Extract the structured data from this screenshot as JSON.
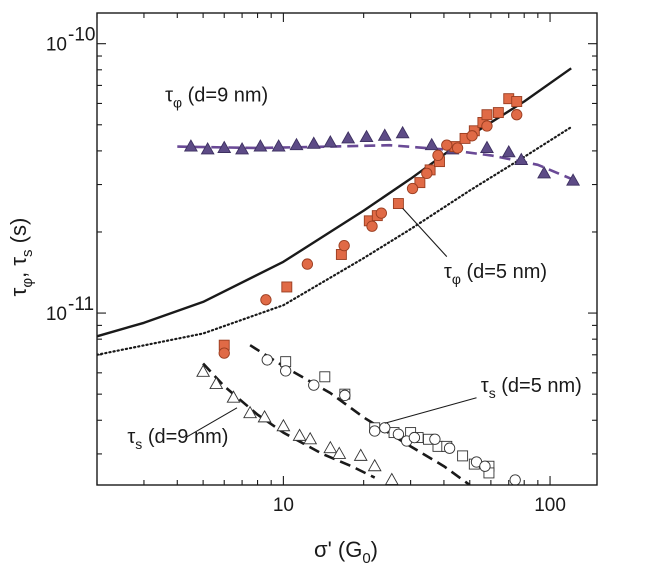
{
  "chart_data": {
    "type": "scatter",
    "title": "",
    "xlabel": {
      "base": "σ' (G",
      "sub": "0",
      "tail": ")"
    },
    "ylabel": {
      "t1": "τ",
      "s1": "φ",
      "sep": ", τ",
      "s2": "s",
      "unit": " (s)"
    },
    "xscale": "log",
    "yscale": "log",
    "xlim": [
      2.0,
      150
    ],
    "ylim": [
      2.3e-12,
      1.3e-10
    ],
    "xticks": [
      {
        "value": 10,
        "label": "10"
      },
      {
        "value": 100,
        "label": "100"
      }
    ],
    "yticks": [
      {
        "value": 1e-11,
        "base": "10",
        "exp": "-11"
      },
      {
        "value": 1e-10,
        "base": "10",
        "exp": "-10"
      }
    ],
    "annotations": [
      {
        "id": "tau-phi-9",
        "sym": "τ",
        "sub": "φ",
        "text": " (d=9 nm)",
        "x": 3.6,
        "y": 6.1e-11
      },
      {
        "id": "tau-phi-5",
        "sym": "τ",
        "sub": "φ",
        "text": " (d=5 nm)",
        "x": 40,
        "y": 1.35e-11,
        "pointer": {
          "from": [
            41,
            1.62e-11
          ],
          "to": [
            28,
            2.45e-11
          ]
        }
      },
      {
        "id": "tau-s-5",
        "sym": "τ",
        "sub": "s",
        "text": " (d=5 nm)",
        "x": 55,
        "y": 5.1e-12,
        "pointer": {
          "from": [
            53,
            4.85e-12
          ],
          "to": [
            24,
            3.9e-12
          ]
        }
      },
      {
        "id": "tau-s-9",
        "sym": "τ",
        "sub": "s",
        "text": " (d=9 nm)",
        "x": 2.6,
        "y": 3.3e-12,
        "pointer": {
          "from": [
            4.3,
            3.45e-12
          ],
          "to": [
            6.7,
            4.45e-12
          ]
        }
      }
    ],
    "series": [
      {
        "name": "τφ d=9 nm (filled triangles)",
        "marker": "triangle",
        "filled": true,
        "color": "#5d4b86",
        "points": [
          [
            4.5,
            4.15e-11
          ],
          [
            5.2,
            4.05e-11
          ],
          [
            6.0,
            4.1e-11
          ],
          [
            7.0,
            4.05e-11
          ],
          [
            8.2,
            4.15e-11
          ],
          [
            9.6,
            4.15e-11
          ],
          [
            11.2,
            4.2e-11
          ],
          [
            13.0,
            4.25e-11
          ],
          [
            15.0,
            4.3e-11
          ],
          [
            17.5,
            4.45e-11
          ],
          [
            20.5,
            4.5e-11
          ],
          [
            24.0,
            4.55e-11
          ],
          [
            28.0,
            4.65e-11
          ],
          [
            36,
            4.2e-11
          ],
          [
            43,
            4.05e-11
          ],
          [
            58,
            4.1e-11
          ],
          [
            70,
            3.95e-11
          ],
          [
            78,
            3.7e-11
          ],
          [
            95,
            3.3e-11
          ],
          [
            122,
            3.1e-11
          ]
        ]
      },
      {
        "name": "τφ d=5 nm (filled squares)",
        "marker": "square",
        "filled": true,
        "color": "#e06a46",
        "points": [
          [
            6.0,
            7.6e-12
          ],
          [
            10.3,
            1.25e-11
          ],
          [
            16.5,
            1.65e-11
          ],
          [
            21.0,
            2.2e-11
          ],
          [
            22.5,
            2.3e-11
          ],
          [
            27.0,
            2.55e-11
          ],
          [
            32.5,
            3.05e-11
          ],
          [
            35.5,
            3.4e-11
          ],
          [
            38.5,
            3.65e-11
          ],
          [
            44,
            4.15e-11
          ],
          [
            48,
            4.45e-11
          ],
          [
            52,
            4.75e-11
          ],
          [
            56,
            5.1e-11
          ],
          [
            58,
            5.45e-11
          ],
          [
            64,
            5.55e-11
          ],
          [
            70,
            6.25e-11
          ],
          [
            75,
            6.1e-11
          ]
        ]
      },
      {
        "name": "τφ d=5 nm (filled circles)",
        "marker": "circle",
        "filled": true,
        "color": "#e06a46",
        "points": [
          [
            6.0,
            7.1e-12
          ],
          [
            8.6,
            1.12e-11
          ],
          [
            12.3,
            1.52e-11
          ],
          [
            16.9,
            1.78e-11
          ],
          [
            21.5,
            2.1e-11
          ],
          [
            23.3,
            2.35e-11
          ],
          [
            30.5,
            2.9e-11
          ],
          [
            34.5,
            3.3e-11
          ],
          [
            38,
            3.85e-11
          ],
          [
            41,
            4.2e-11
          ],
          [
            45,
            4.1e-11
          ],
          [
            51,
            4.55e-11
          ],
          [
            58,
            4.95e-11
          ],
          [
            75,
            5.45e-11
          ]
        ]
      },
      {
        "name": "τs d=5 nm (open squares)",
        "marker": "square",
        "filled": false,
        "color": "#333333",
        "points": [
          [
            10.2,
            6.6e-12
          ],
          [
            14.3,
            5.8e-12
          ],
          [
            17.0,
            5e-12
          ],
          [
            22.0,
            3.75e-12
          ],
          [
            26.0,
            3.6e-12
          ],
          [
            30.0,
            3.6e-12
          ],
          [
            32.0,
            3.45e-12
          ],
          [
            35.0,
            3.4e-12
          ],
          [
            38.0,
            3.2e-12
          ],
          [
            41.0,
            3.2e-12
          ],
          [
            47.0,
            2.95e-12
          ],
          [
            52.0,
            2.75e-12
          ],
          [
            59.0,
            2.7e-12
          ],
          [
            59.0,
            2.55e-12
          ]
        ]
      },
      {
        "name": "τs d=5 nm (open circles)",
        "marker": "circle",
        "filled": false,
        "color": "#333333",
        "points": [
          [
            8.7,
            6.7e-12
          ],
          [
            10.2,
            6.1e-12
          ],
          [
            13.0,
            5.4e-12
          ],
          [
            17.0,
            4.95e-12
          ],
          [
            22.0,
            3.65e-12
          ],
          [
            24.0,
            3.75e-12
          ],
          [
            27.0,
            3.55e-12
          ],
          [
            29.0,
            3.35e-12
          ],
          [
            31.0,
            3.45e-12
          ],
          [
            37.0,
            3.4e-12
          ],
          [
            42.0,
            3.15e-12
          ],
          [
            53.0,
            2.8e-12
          ],
          [
            57.0,
            2.7e-12
          ],
          [
            74.0,
            2.4e-12
          ]
        ]
      },
      {
        "name": "τs d=9 nm (open triangles)",
        "marker": "triangle",
        "filled": false,
        "color": "#333333",
        "points": [
          [
            5.0,
            6.05e-12
          ],
          [
            5.6,
            5.45e-12
          ],
          [
            6.5,
            4.85e-12
          ],
          [
            7.5,
            4.25e-12
          ],
          [
            8.5,
            4.1e-12
          ],
          [
            10.0,
            3.8e-12
          ],
          [
            11.5,
            3.5e-12
          ],
          [
            12.6,
            3.4e-12
          ],
          [
            15.0,
            3.15e-12
          ],
          [
            16.2,
            3e-12
          ],
          [
            19.5,
            2.95e-12
          ],
          [
            22.0,
            2.7e-12
          ],
          [
            25.5,
            2.4e-12
          ]
        ]
      }
    ],
    "lines": [
      {
        "name": "τφ d=5 nm theory (solid)",
        "style": "solid",
        "color": "#1a1a1a",
        "points": [
          [
            2.0,
            8.2e-12
          ],
          [
            3.0,
            9.2e-12
          ],
          [
            5.0,
            1.1e-11
          ],
          [
            10.0,
            1.55e-11
          ],
          [
            20.0,
            2.4e-11
          ],
          [
            30.0,
            3.15e-11
          ],
          [
            50.0,
            4.55e-11
          ],
          [
            80.0,
            6.1e-11
          ],
          [
            120.0,
            8.1e-11
          ]
        ]
      },
      {
        "name": "τφ d=5 nm theory (dotted)",
        "style": "dotted",
        "color": "#1a1a1a",
        "points": [
          [
            2.0,
            7e-12
          ],
          [
            5.0,
            8.4e-12
          ],
          [
            10.0,
            1.07e-11
          ],
          [
            20.0,
            1.6e-11
          ],
          [
            30.0,
            2.05e-11
          ],
          [
            50.0,
            2.85e-11
          ],
          [
            80.0,
            3.8e-11
          ],
          [
            120.0,
            4.9e-11
          ]
        ]
      },
      {
        "name": "τφ d=9 nm theory (dashed purple)",
        "style": "dashed",
        "color": "#6a4a96",
        "points": [
          [
            4.0,
            4.15e-11
          ],
          [
            8.0,
            4.1e-11
          ],
          [
            15.0,
            4.15e-11
          ],
          [
            25.0,
            4.2e-11
          ],
          [
            40.0,
            4.05e-11
          ],
          [
            60.0,
            3.85e-11
          ],
          [
            90.0,
            3.55e-11
          ],
          [
            120.0,
            3.15e-11
          ]
        ]
      },
      {
        "name": "τs d=5 nm theory (dashed)",
        "style": "dashed",
        "color": "#1a1a1a",
        "points": [
          [
            7.5,
            7.6e-12
          ],
          [
            10.0,
            6.35e-12
          ],
          [
            15.0,
            5.05e-12
          ],
          [
            20.0,
            4.1e-12
          ],
          [
            30.0,
            3.2e-12
          ],
          [
            40.0,
            2.7e-12
          ],
          [
            50.0,
            2.3e-12
          ]
        ]
      },
      {
        "name": "τs d=9 nm theory (dashed)",
        "style": "dashed",
        "color": "#1a1a1a",
        "points": [
          [
            5.0,
            6.5e-12
          ],
          [
            6.0,
            5.35e-12
          ],
          [
            8.0,
            4.2e-12
          ],
          [
            10.0,
            3.6e-12
          ],
          [
            14.0,
            3e-12
          ],
          [
            18.0,
            2.7e-12
          ],
          [
            22.0,
            2.45e-12
          ]
        ]
      }
    ]
  }
}
